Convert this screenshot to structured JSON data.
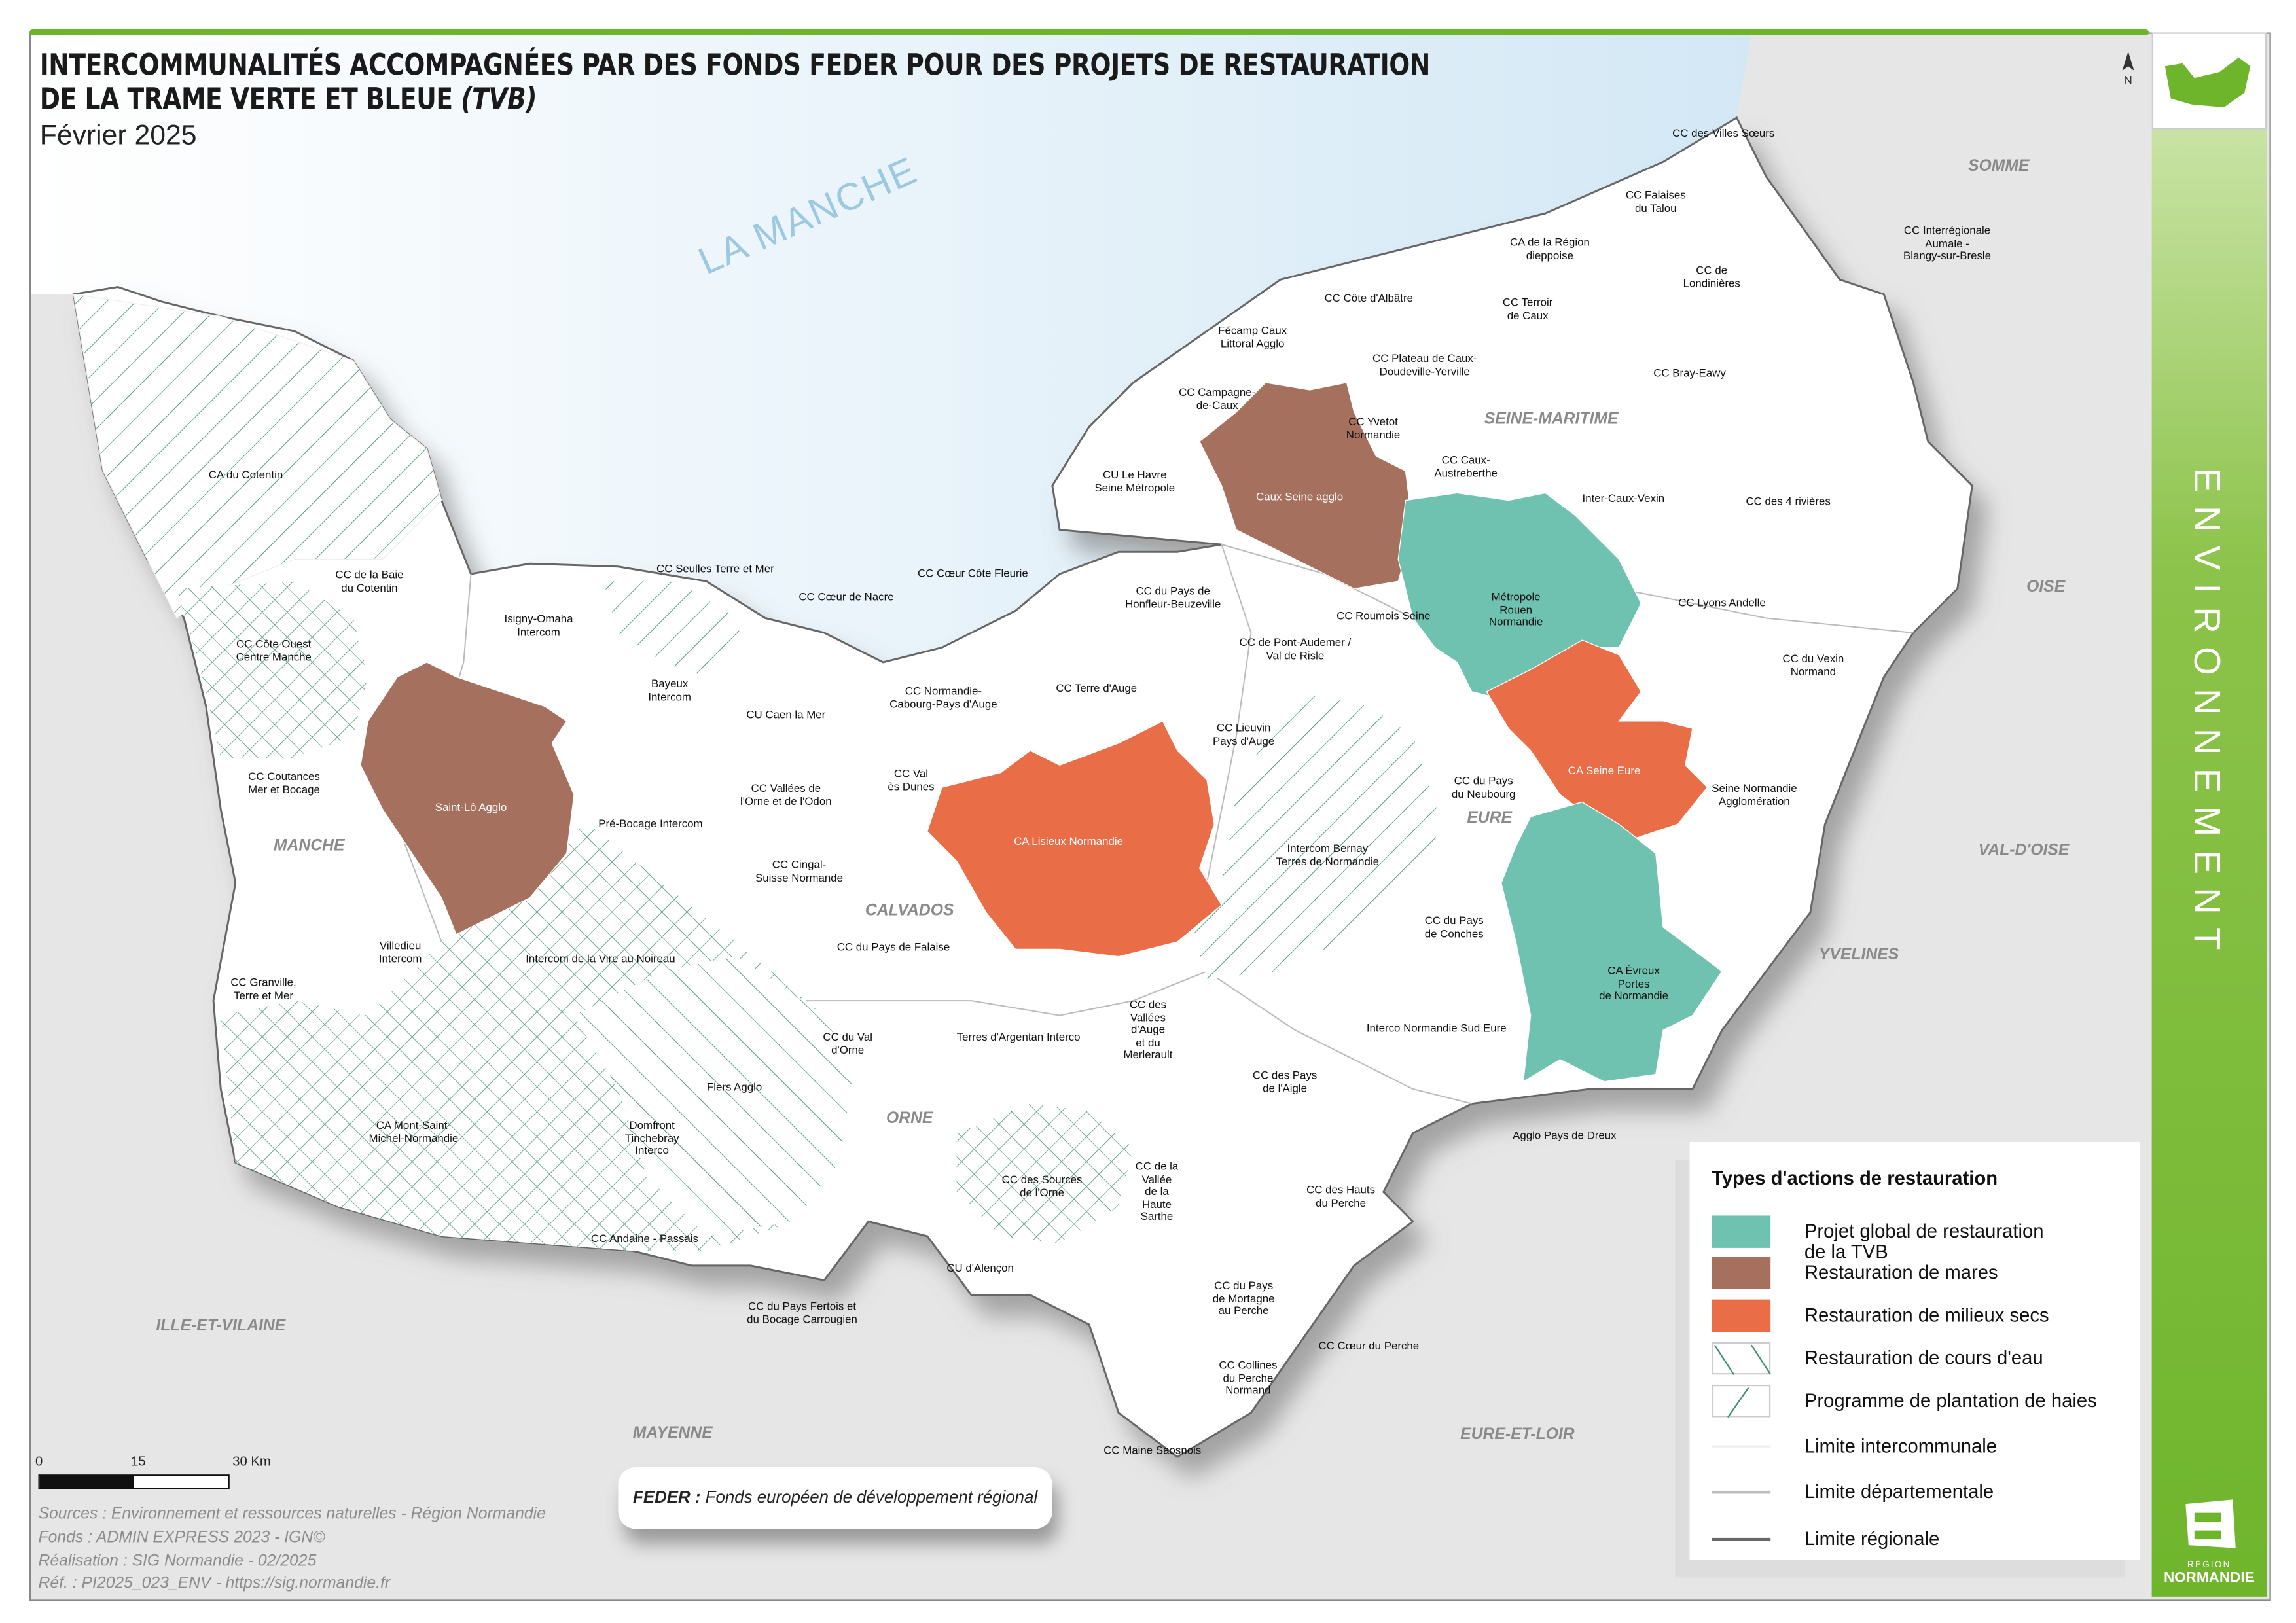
{
  "title": {
    "line1": "INTERCOMMUNALITÉS ACCOMPAGNÉES PAR DES FONDS FEDER POUR DES PROJETS DE RESTAURATION",
    "line2_main": "DE LA TRAME VERTE ET BLEUE ",
    "line2_italic": "(TVB)",
    "date": "Février 2025"
  },
  "sea_label": "LA MANCHE",
  "side_band": {
    "text": "ENVIRONNEMENT",
    "logo_region": "RÉGION",
    "logo_name": "NORMANDIE"
  },
  "north_label": "N",
  "departments": [
    "MANCHE",
    "CALVADOS",
    "ORNE",
    "EURE",
    "SEINE-MARITIME"
  ],
  "neighbors": [
    "SOMME",
    "OISE",
    "VAL-D'OISE",
    "YVELINES",
    "EURE-ET-LOIR",
    "MAYENNE",
    "ILLE-ET-VILAINE"
  ],
  "labels": [
    "CC des Villes Sœurs",
    "CC Falaises\ndu Talou",
    "CA de la Région\ndieppoise",
    "CC Interrégionale\nAumale -\nBlangy-sur-Bresle",
    "CC de\nLondinières",
    "CC Terroir\nde Caux",
    "CC Côte d'Albâtre",
    "Fécamp Caux\nLittoral Agglo",
    "CC Plateau de Caux-\nDoudeville-Yerville",
    "CC Bray-Eawy",
    "CC Campagne-\nde-Caux",
    "CC Yvetot\nNormandie",
    "CC Caux-\nAustreberthe",
    "CU Le Havre\nSeine Métropole",
    "Caux Seine agglo",
    "Inter-Caux-Vexin",
    "CC des 4 rivières",
    "CA du Cotentin",
    "CC Seulles Terre et Mer",
    "CC Cœur Côte Fleurie",
    "CC de la Baie\ndu Cotentin",
    "CC Cœur de Nacre",
    "CC du Pays de\nHonfleur-Beuzeville",
    "Métropole\nRouen\nNormandie",
    "CC Lyons Andelle",
    "CC Roumois Seine",
    "Isigny-Omaha\nIntercom",
    "CC Côte Ouest\nCentre Manche",
    "CC de Pont-Audemer /\nVal de Risle",
    "CC du Vexin\nNormand",
    "Bayeux\nIntercom",
    "CC Normandie-\nCabourg-Pays d'Auge",
    "CC Terre d'Auge",
    "CU Caen la Mer",
    "CC Lieuvin\nPays d'Auge",
    "CA Seine Eure",
    "CC Coutances\nMer et Bocage",
    "CC Val\nès Dunes",
    "CC du Pays\ndu Neubourg",
    "Seine Normandie\nAgglomération",
    "CC Vallées de\nl'Orne et de l'Odon",
    "Saint-Lô Agglo",
    "Pré-Bocage Intercom",
    "CA Lisieux Normandie",
    "Intercom Bernay\nTerres de Normandie",
    "CC Cingal-\nSuisse Normande",
    "CC du Pays\nde Conches",
    "CC du Pays de Falaise",
    "Intercom de la Vire au Noireau",
    "Villedieu\nIntercom",
    "CC Granville,\nTerre et Mer",
    "CA Évreux\nPortes\nde Normandie",
    "CC des\nVallées\nd'Auge\net du\nMerlerault",
    "Interco Normandie Sud Eure",
    "CC du Val\nd'Orne",
    "Terres d'Argentan Interco",
    "CC des Pays\nde l'Aigle",
    "Flers Agglo",
    "CA Mont-Saint-\nMichel-Normandie",
    "Domfront\nTinchebray\nInterco",
    "Agglo Pays de Dreux",
    "CC de la\nVallée\nde la\nHaute\nSarthe",
    "CC des Sources\nde l'Orne",
    "CC des Hauts\ndu Perche",
    "CC Andaine - Passais",
    "CU d'Alençon",
    "CC du Pays\nde Mortagne\nau Perche",
    "CC du Pays Fertois et\ndu Bocage Carrougien",
    "CC Cœur du Perche",
    "CC Collines\ndu Perche\nNormand",
    "CC Maine Saosnois"
  ],
  "legend": {
    "title": "Types d'actions de restauration",
    "items": [
      {
        "label": "Projet global de restauration\nde la TVB",
        "type": "fill",
        "color": "#6fc2b0"
      },
      {
        "label": "Restauration de mares",
        "type": "fill",
        "color": "#a5705e"
      },
      {
        "label": "Restauration de milieux secs",
        "type": "fill",
        "color": "#e96d47"
      },
      {
        "label": "Restauration de cours d'eau",
        "type": "hatch-backslash",
        "color": "#3f8f6f"
      },
      {
        "label": "Programme de plantation de haies",
        "type": "hatch-slash",
        "color": "#3f8f6f"
      },
      {
        "label": "Limite intercommunale",
        "type": "line",
        "color": "#f0f0f0"
      },
      {
        "label": "Limite départementale",
        "type": "line",
        "color": "#bbbbbb"
      },
      {
        "label": "Limite régionale",
        "type": "line",
        "color": "#666666"
      }
    ]
  },
  "feder": {
    "abbr": "FEDER :",
    "text": " Fonds européen de développement régional"
  },
  "scale_bar": {
    "ticks": [
      "0",
      "15",
      "30 Km"
    ]
  },
  "credits": [
    "Sources : Environnement et ressources naturelles - Région Normandie",
    "Fonds : ADMIN EXPRESS 2023 - IGN©",
    "Réalisation : SIG Normandie - 02/2025",
    "Réf. : PI2025_023_ENV - https://sig.normandie.fr"
  ],
  "colors": {
    "tvb": "#6fc2b0",
    "mares": "#a5705e",
    "milieux_secs": "#e96d47",
    "hatch": "#3f8f6f",
    "accent": "#6fb52c",
    "sea": "#d5e9f5"
  }
}
